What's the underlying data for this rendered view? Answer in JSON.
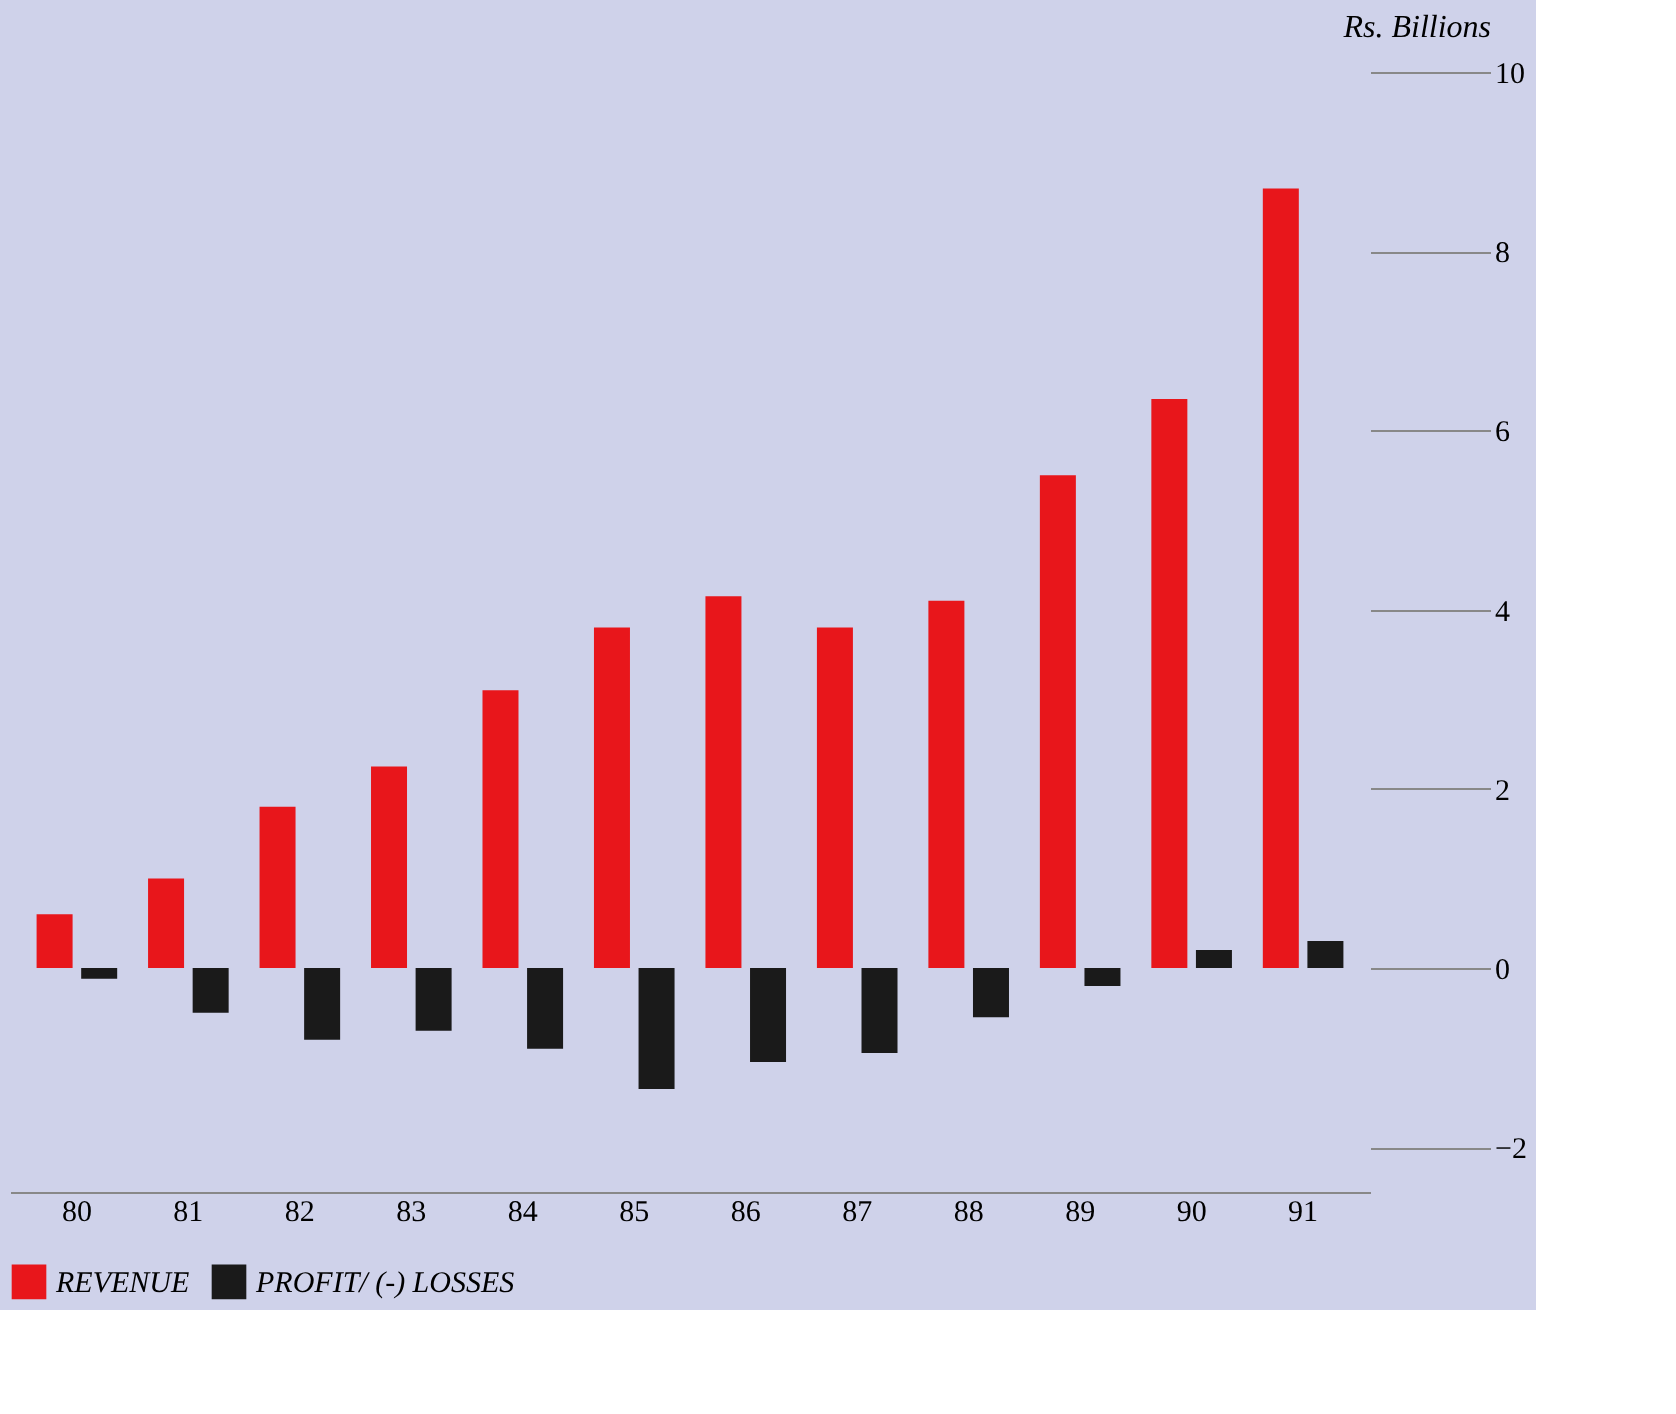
{
  "chart_data": {
    "type": "bar",
    "ylabel": "Rs. Billions",
    "categories": [
      "80",
      "81",
      "82",
      "83",
      "84",
      "85",
      "86",
      "87",
      "88",
      "89",
      "90",
      "91"
    ],
    "series": [
      {
        "name": "REVENUE",
        "color": "#e8161b",
        "values": [
          0.6,
          1.0,
          1.8,
          2.25,
          3.1,
          3.8,
          4.15,
          3.8,
          4.1,
          5.5,
          6.35,
          8.7
        ]
      },
      {
        "name": "PROFIT/ (-) LOSSES",
        "color": "#1a1a1a",
        "values": [
          -0.12,
          -0.5,
          -0.8,
          -0.7,
          -0.9,
          -1.35,
          -1.05,
          -0.95,
          -0.55,
          -0.2,
          0.2,
          0.3
        ]
      }
    ],
    "ylim": [
      -2.5,
      10
    ],
    "yticks": [
      -2,
      0,
      2,
      4,
      6,
      8,
      10
    ],
    "grid": false,
    "legend": "bottom"
  }
}
